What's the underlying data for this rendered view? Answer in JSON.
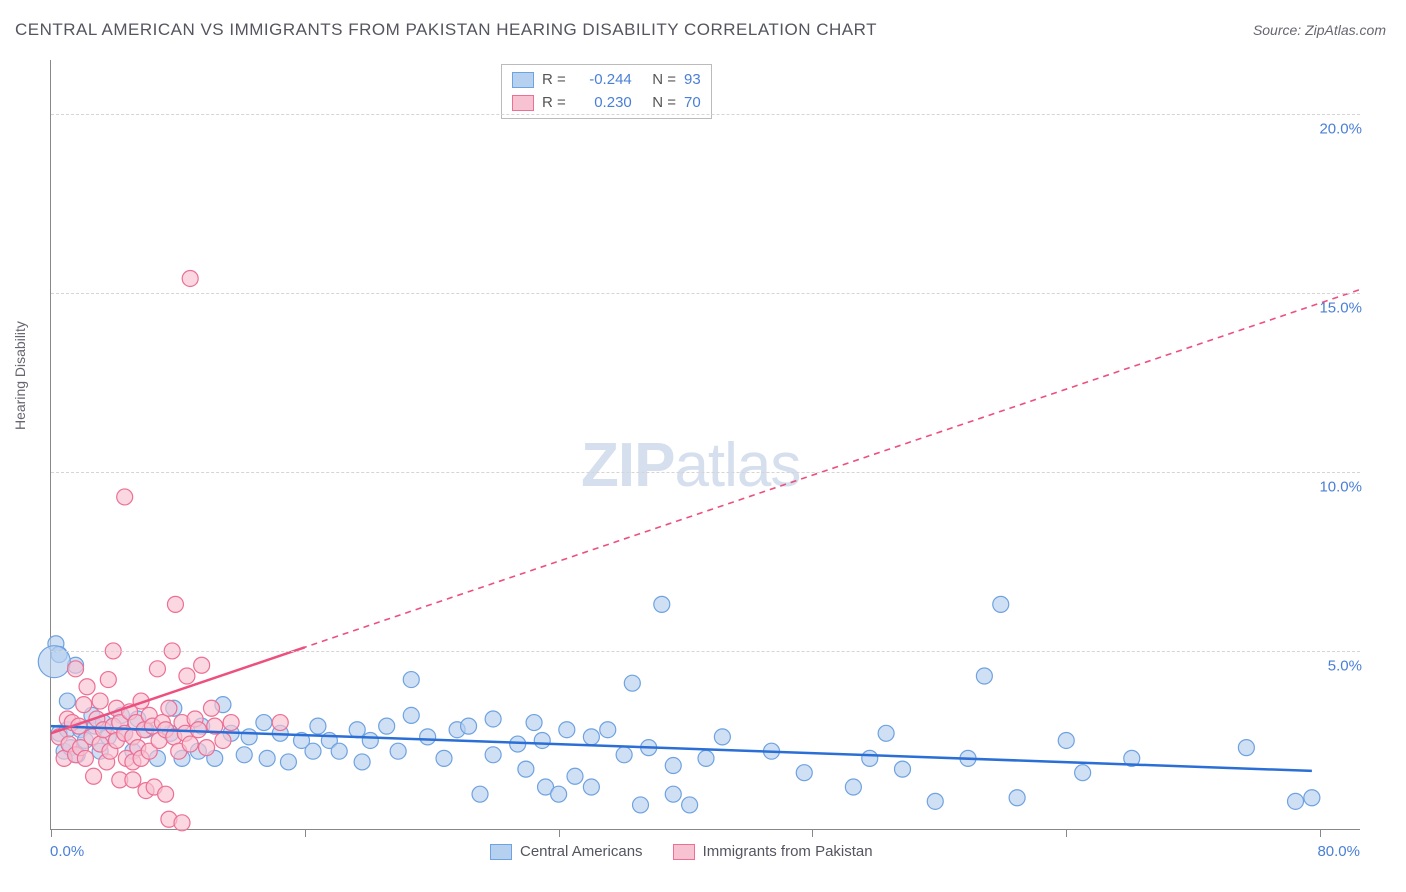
{
  "title": "CENTRAL AMERICAN VS IMMIGRANTS FROM PAKISTAN HEARING DISABILITY CORRELATION CHART",
  "source_label": "Source: ",
  "source_value": "ZipAtlas.com",
  "y_axis_label": "Hearing Disability",
  "watermark_bold": "ZIP",
  "watermark_light": "atlas",
  "chart": {
    "type": "scatter-with-regression",
    "background_color": "#ffffff",
    "axis_color": "#888888",
    "grid_color": "#d5d5d5",
    "grid_dash": "4 4",
    "xlim": [
      0,
      80
    ],
    "ylim": [
      0,
      21.5
    ],
    "y_ticks": [
      {
        "value": 5.0,
        "label": "5.0%"
      },
      {
        "value": 10.0,
        "label": "10.0%"
      },
      {
        "value": 15.0,
        "label": "15.0%"
      },
      {
        "value": 20.0,
        "label": "20.0%"
      }
    ],
    "x_ticks_positions": [
      0,
      15.5,
      31,
      46.5,
      62,
      77.5
    ],
    "x_label_left": {
      "value": 0,
      "label": "0.0%"
    },
    "x_label_right": {
      "value": 80,
      "label": "80.0%"
    },
    "series": [
      {
        "name": "Central Americans",
        "marker_fill": "#b6d0f0",
        "marker_stroke": "#6fa2e0",
        "marker_opacity": 0.65,
        "marker_radius": 8,
        "line_color": "#2b6fd6",
        "line_width": 2.5,
        "line_dash": "none",
        "R": "-0.244",
        "N": "93",
        "regression": {
          "x1": 0,
          "y1": 2.9,
          "x2": 80,
          "y2": 1.6
        },
        "solid_segment": {
          "x1": 0,
          "y1": 2.9,
          "x2": 77,
          "y2": 1.65
        },
        "points": [
          [
            0.3,
            5.2
          ],
          [
            0.5,
            2.7
          ],
          [
            0.5,
            4.9
          ],
          [
            0.8,
            2.2
          ],
          [
            1.0,
            3.6
          ],
          [
            1.0,
            2.8
          ],
          [
            1.2,
            2.3
          ],
          [
            1.5,
            4.6
          ],
          [
            1.6,
            2.1
          ],
          [
            1.8,
            2.8
          ],
          [
            2.1,
            2.5
          ],
          [
            2.5,
            3.2
          ],
          [
            2.7,
            2.9
          ],
          [
            3.0,
            2.2
          ],
          [
            3.2,
            3.0
          ],
          [
            3.5,
            2.6
          ],
          [
            4.3,
            3.2
          ],
          [
            4.5,
            2.7
          ],
          [
            5.0,
            2.2
          ],
          [
            5.3,
            3.1
          ],
          [
            5.8,
            2.8
          ],
          [
            6.5,
            2.0
          ],
          [
            7.3,
            2.7
          ],
          [
            7.5,
            3.4
          ],
          [
            8.0,
            2.0
          ],
          [
            9.0,
            2.2
          ],
          [
            9.2,
            2.9
          ],
          [
            10.0,
            2.0
          ],
          [
            10.5,
            3.5
          ],
          [
            11.0,
            2.7
          ],
          [
            11.8,
            2.1
          ],
          [
            12.1,
            2.6
          ],
          [
            13.0,
            3.0
          ],
          [
            13.2,
            2.0
          ],
          [
            14.0,
            2.7
          ],
          [
            14.5,
            1.9
          ],
          [
            15.3,
            2.5
          ],
          [
            16.0,
            2.2
          ],
          [
            16.3,
            2.9
          ],
          [
            17.0,
            2.5
          ],
          [
            17.6,
            2.2
          ],
          [
            18.7,
            2.8
          ],
          [
            19.0,
            1.9
          ],
          [
            19.5,
            2.5
          ],
          [
            20.5,
            2.9
          ],
          [
            21.2,
            2.2
          ],
          [
            22.0,
            3.2
          ],
          [
            22.0,
            4.2
          ],
          [
            23.0,
            2.6
          ],
          [
            24.0,
            2.0
          ],
          [
            24.8,
            2.8
          ],
          [
            25.5,
            2.9
          ],
          [
            26.2,
            1.0
          ],
          [
            27.0,
            2.1
          ],
          [
            27.0,
            3.1
          ],
          [
            28.5,
            2.4
          ],
          [
            29.0,
            1.7
          ],
          [
            29.5,
            3.0
          ],
          [
            30.0,
            2.5
          ],
          [
            30.2,
            1.2
          ],
          [
            31.0,
            1.0
          ],
          [
            31.5,
            2.8
          ],
          [
            32.0,
            1.5
          ],
          [
            33.0,
            2.6
          ],
          [
            33.0,
            1.2
          ],
          [
            34.0,
            2.8
          ],
          [
            35.0,
            2.1
          ],
          [
            35.5,
            4.1
          ],
          [
            36.0,
            0.7
          ],
          [
            36.5,
            2.3
          ],
          [
            37.3,
            6.3
          ],
          [
            38.0,
            1.0
          ],
          [
            38.0,
            1.8
          ],
          [
            39.0,
            0.7
          ],
          [
            40.0,
            2.0
          ],
          [
            41.0,
            2.6
          ],
          [
            44.0,
            2.2
          ],
          [
            46.0,
            1.6
          ],
          [
            49.0,
            1.2
          ],
          [
            50.0,
            2.0
          ],
          [
            51.0,
            2.7
          ],
          [
            52.0,
            1.7
          ],
          [
            54.0,
            0.8
          ],
          [
            56.0,
            2.0
          ],
          [
            57.0,
            4.3
          ],
          [
            58.0,
            6.3
          ],
          [
            59.0,
            0.9
          ],
          [
            62.0,
            2.5
          ],
          [
            63.0,
            1.6
          ],
          [
            66.0,
            2.0
          ],
          [
            73.0,
            2.3
          ],
          [
            76.0,
            0.8
          ],
          [
            77.0,
            0.9
          ]
        ],
        "big_points": [
          [
            0.2,
            4.7,
            16
          ]
        ]
      },
      {
        "name": "Immigrants from Pakistan",
        "marker_fill": "#f7c2d1",
        "marker_stroke": "#ed6f94",
        "marker_opacity": 0.65,
        "marker_radius": 8,
        "line_color": "#ed4f7e",
        "line_width": 2.5,
        "line_dash": "6 5",
        "R": "0.230",
        "N": "70",
        "regression": {
          "x1": 0,
          "y1": 2.7,
          "x2": 80,
          "y2": 15.1
        },
        "solid_segment": {
          "x1": 0,
          "y1": 2.7,
          "x2": 15.5,
          "y2": 5.1
        },
        "points": [
          [
            0.5,
            2.6
          ],
          [
            0.8,
            2.0
          ],
          [
            1.0,
            3.1
          ],
          [
            1.1,
            2.4
          ],
          [
            1.3,
            3.0
          ],
          [
            1.5,
            2.1
          ],
          [
            1.5,
            4.5
          ],
          [
            1.7,
            2.9
          ],
          [
            1.8,
            2.3
          ],
          [
            2.0,
            3.5
          ],
          [
            2.1,
            2.0
          ],
          [
            2.2,
            4.0
          ],
          [
            2.5,
            2.6
          ],
          [
            2.6,
            1.5
          ],
          [
            2.8,
            3.1
          ],
          [
            3.0,
            2.4
          ],
          [
            3.0,
            3.6
          ],
          [
            3.2,
            2.8
          ],
          [
            3.4,
            1.9
          ],
          [
            3.5,
            4.2
          ],
          [
            3.6,
            2.2
          ],
          [
            3.8,
            2.9
          ],
          [
            3.8,
            5.0
          ],
          [
            4.0,
            2.5
          ],
          [
            4.0,
            3.4
          ],
          [
            4.2,
            1.4
          ],
          [
            4.2,
            3.0
          ],
          [
            4.5,
            2.7
          ],
          [
            4.5,
            9.3
          ],
          [
            4.6,
            2.0
          ],
          [
            4.8,
            3.3
          ],
          [
            5.0,
            2.6
          ],
          [
            5.0,
            1.4
          ],
          [
            5.0,
            1.9
          ],
          [
            5.2,
            3.0
          ],
          [
            5.3,
            2.3
          ],
          [
            5.5,
            3.6
          ],
          [
            5.5,
            2.0
          ],
          [
            5.7,
            2.8
          ],
          [
            5.8,
            1.1
          ],
          [
            6.0,
            3.2
          ],
          [
            6.0,
            2.2
          ],
          [
            6.2,
            2.9
          ],
          [
            6.3,
            1.2
          ],
          [
            6.5,
            4.5
          ],
          [
            6.6,
            2.5
          ],
          [
            6.8,
            3.0
          ],
          [
            7.0,
            2.8
          ],
          [
            7.0,
            1.0
          ],
          [
            7.2,
            0.3
          ],
          [
            7.2,
            3.4
          ],
          [
            7.4,
            5.0
          ],
          [
            7.5,
            2.6
          ],
          [
            7.6,
            6.3
          ],
          [
            7.8,
            2.2
          ],
          [
            8.0,
            3.0
          ],
          [
            8.0,
            0.2
          ],
          [
            8.2,
            2.7
          ],
          [
            8.3,
            4.3
          ],
          [
            8.5,
            2.4
          ],
          [
            8.5,
            15.4
          ],
          [
            8.8,
            3.1
          ],
          [
            9.0,
            2.8
          ],
          [
            9.2,
            4.6
          ],
          [
            9.5,
            2.3
          ],
          [
            9.8,
            3.4
          ],
          [
            10.0,
            2.9
          ],
          [
            10.5,
            2.5
          ],
          [
            11.0,
            3.0
          ],
          [
            14.0,
            3.0
          ]
        ],
        "big_points": []
      }
    ],
    "legend_bottom": [
      {
        "label": "Central Americans",
        "fill": "#b6d0f0",
        "stroke": "#6fa2e0"
      },
      {
        "label": "Immigrants from Pakistan",
        "fill": "#f7c2d1",
        "stroke": "#ed6f94"
      }
    ],
    "tick_label_color": "#4a7fd6",
    "stat_value_color": "#4a7fd6",
    "label_fontsize": 14,
    "tick_fontsize": 15,
    "title_fontsize": 17
  }
}
